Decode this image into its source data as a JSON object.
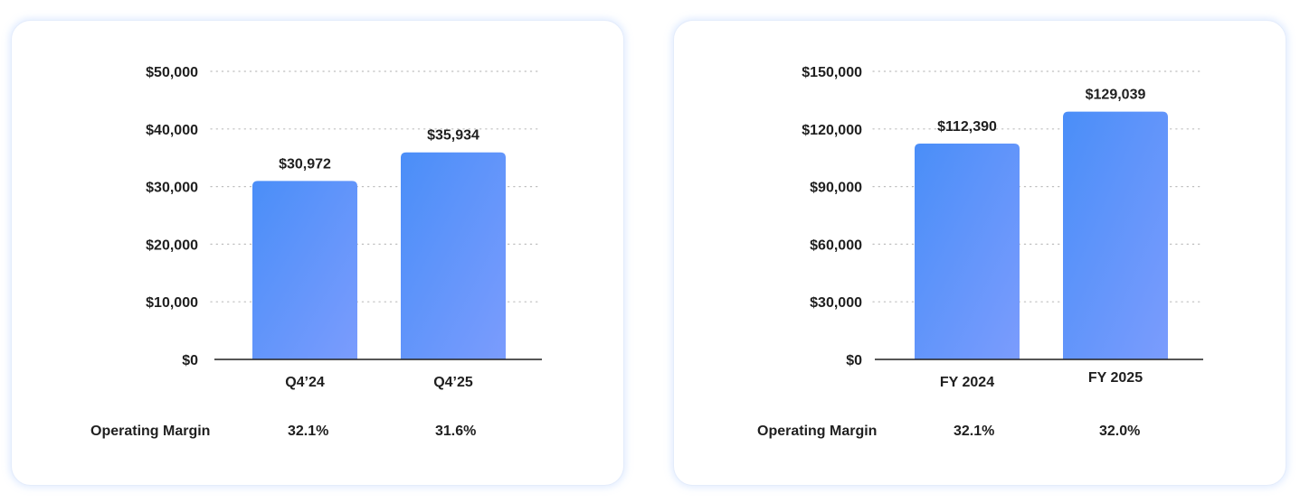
{
  "colors": {
    "bar_top": "#4a8ef8",
    "bar_bottom": "#7b9cfd",
    "axis": "#1f1f1f",
    "grid": "#bdbdbd"
  },
  "chart_data": [
    {
      "type": "bar",
      "categories": [
        "Q4’24",
        "Q4’25"
      ],
      "values": [
        30972,
        35934
      ],
      "value_labels": [
        "$30,972",
        "$35,934"
      ],
      "yticks": [
        0,
        10000,
        20000,
        30000,
        40000,
        50000
      ],
      "ytick_labels": [
        "$0",
        "$10,000",
        "$20,000",
        "$30,000",
        "$40,000",
        "$50,000"
      ],
      "ylim": [
        0,
        50000
      ],
      "grid": true,
      "footer": {
        "label": "Operating Margin",
        "values": [
          "32.1%",
          "31.6%"
        ]
      }
    },
    {
      "type": "bar",
      "categories": [
        "FY 2024",
        "FY 2025"
      ],
      "values": [
        112390,
        129039
      ],
      "value_labels": [
        "$112,390",
        "$129,039"
      ],
      "yticks": [
        0,
        30000,
        60000,
        90000,
        120000,
        150000
      ],
      "ytick_labels": [
        "$0",
        "$30,000",
        "$60,000",
        "$90,000",
        "$120,000",
        "$150,000"
      ],
      "ylim": [
        0,
        150000
      ],
      "grid": true,
      "footer": {
        "label": "Operating Margin",
        "values": [
          "32.1%",
          "32.0%"
        ]
      }
    }
  ]
}
